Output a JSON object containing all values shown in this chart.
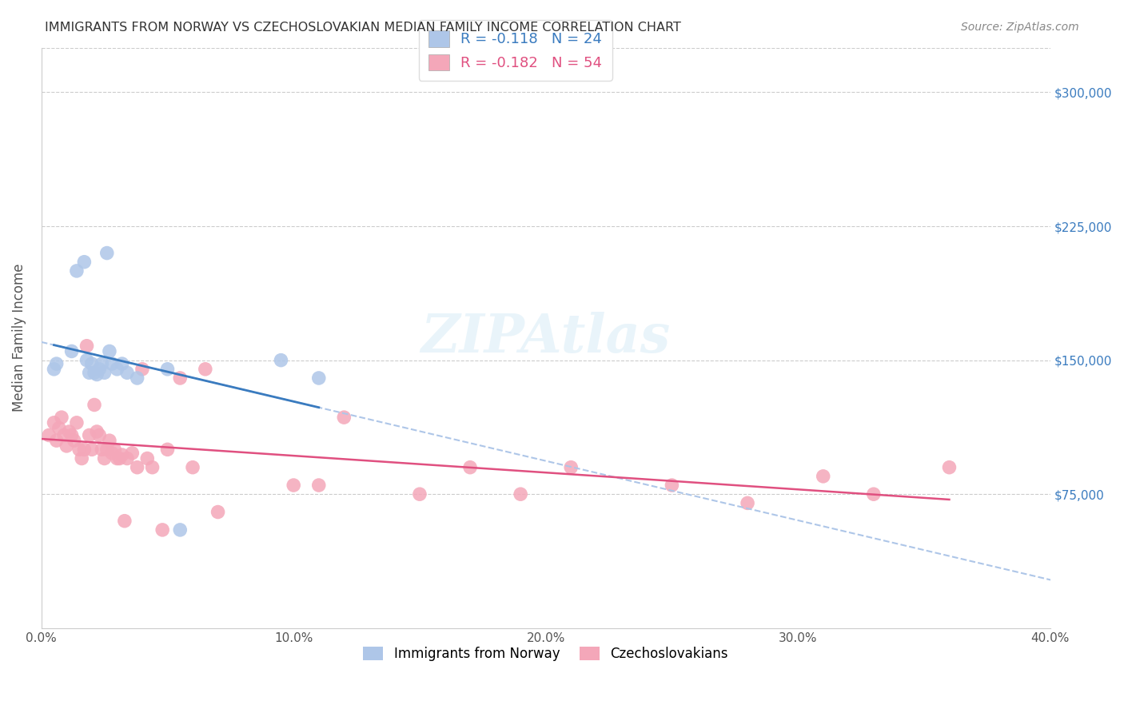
{
  "title": "IMMIGRANTS FROM NORWAY VS CZECHOSLOVAKIAN MEDIAN FAMILY INCOME CORRELATION CHART",
  "source": "Source: ZipAtlas.com",
  "xlabel": "",
  "ylabel": "Median Family Income",
  "xlim": [
    0.0,
    0.4
  ],
  "ylim": [
    0,
    325000
  ],
  "yticks": [
    75000,
    150000,
    225000,
    300000
  ],
  "ytick_labels": [
    "$75,000",
    "$150,000",
    "$225,000",
    "$300,000"
  ],
  "xtick_labels": [
    "0.0%",
    "10.0%",
    "20.0%",
    "30.0%",
    "40.0%"
  ],
  "xticks": [
    0.0,
    0.1,
    0.2,
    0.3,
    0.4
  ],
  "legend_labels": [
    "Immigrants from Norway",
    "Czechoslovakians"
  ],
  "legend_R": [
    -0.118,
    -0.182
  ],
  "legend_N": [
    24,
    54
  ],
  "norway_color": "#aec6e8",
  "czech_color": "#f4a7b9",
  "norway_line_color": "#3a7bbf",
  "czech_line_color": "#e05080",
  "dashed_line_color": "#aec6e8",
  "background_color": "#ffffff",
  "grid_color": "#cccccc",
  "norway_x": [
    0.005,
    0.006,
    0.012,
    0.014,
    0.017,
    0.018,
    0.019,
    0.02,
    0.021,
    0.022,
    0.023,
    0.024,
    0.025,
    0.026,
    0.027,
    0.028,
    0.03,
    0.032,
    0.034,
    0.038,
    0.05,
    0.055,
    0.095,
    0.11
  ],
  "norway_y": [
    145000,
    148000,
    155000,
    200000,
    205000,
    150000,
    143000,
    148000,
    143000,
    142000,
    145000,
    148000,
    143000,
    210000,
    155000,
    148000,
    145000,
    148000,
    143000,
    140000,
    145000,
    55000,
    150000,
    140000
  ],
  "czech_x": [
    0.003,
    0.005,
    0.006,
    0.007,
    0.008,
    0.009,
    0.01,
    0.011,
    0.012,
    0.013,
    0.014,
    0.015,
    0.016,
    0.017,
    0.018,
    0.019,
    0.02,
    0.021,
    0.022,
    0.023,
    0.024,
    0.025,
    0.026,
    0.027,
    0.028,
    0.029,
    0.03,
    0.031,
    0.032,
    0.033,
    0.034,
    0.036,
    0.038,
    0.04,
    0.042,
    0.044,
    0.048,
    0.05,
    0.055,
    0.06,
    0.065,
    0.07,
    0.1,
    0.11,
    0.12,
    0.15,
    0.17,
    0.19,
    0.21,
    0.25,
    0.28,
    0.31,
    0.33,
    0.36
  ],
  "czech_y": [
    108000,
    115000,
    105000,
    112000,
    118000,
    108000,
    102000,
    110000,
    108000,
    105000,
    115000,
    100000,
    95000,
    100000,
    158000,
    108000,
    100000,
    125000,
    110000,
    108000,
    100000,
    95000,
    100000,
    105000,
    98000,
    100000,
    95000,
    95000,
    97000,
    60000,
    95000,
    98000,
    90000,
    145000,
    95000,
    90000,
    55000,
    100000,
    140000,
    90000,
    145000,
    65000,
    80000,
    80000,
    118000,
    75000,
    90000,
    75000,
    90000,
    80000,
    70000,
    85000,
    75000,
    90000
  ]
}
